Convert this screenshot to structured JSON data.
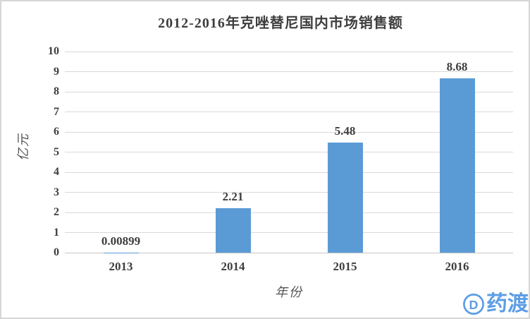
{
  "chart_data": {
    "type": "bar",
    "title": "2012-2016年克唑替尼国内市场销售额",
    "categories": [
      "2013",
      "2014",
      "2015",
      "2016"
    ],
    "values": [
      0.00899,
      2.21,
      5.48,
      8.68
    ],
    "data_labels": [
      "0.00899",
      "2.21",
      "5.48",
      "8.68"
    ],
    "xlabel": "年份",
    "ylabel": "亿元",
    "ylim": [
      0,
      10
    ],
    "ytick_interval": 1,
    "grid": true,
    "legend_position": "none",
    "bar_color": "#5B9BD5",
    "gridline_color": "#D9D9D9",
    "baseline_color": "#C6C6C6",
    "text_color": "#3E3E3E"
  },
  "watermark": {
    "text": "药渡",
    "icon": "pharmacodia-d-icon",
    "color": "#5C9DE5"
  }
}
